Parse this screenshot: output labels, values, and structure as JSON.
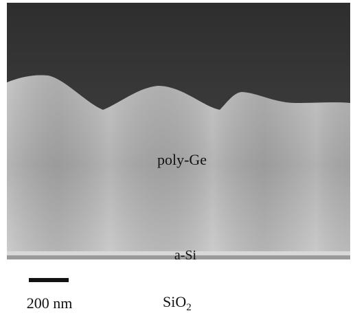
{
  "labels": {
    "film": "poly-Ge",
    "seed_layer": "a-Si",
    "scale_bar": "200 nm",
    "substrate": {
      "base": "SiO",
      "subscript": "2"
    }
  }
}
